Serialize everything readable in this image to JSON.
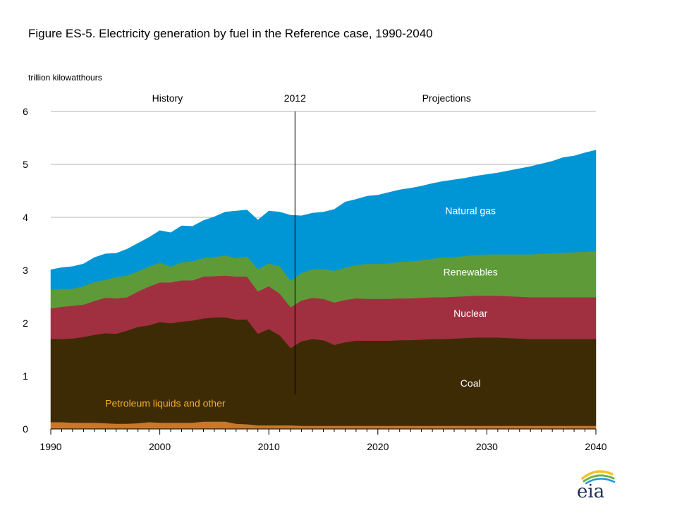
{
  "title": "Figure ES-5. Electricity generation by fuel in the Reference case, 1990-2040",
  "unit_label": "trillion kilowatthours",
  "logo_text": "eia",
  "chart_data": {
    "type": "area",
    "stacked": true,
    "x_start": 1990,
    "x_end": 2040,
    "xlim": [
      1990,
      2040
    ],
    "ylim": [
      0,
      6
    ],
    "x_ticks": [
      1990,
      2000,
      2010,
      2020,
      2030,
      2040
    ],
    "y_ticks": [
      0,
      1,
      2,
      3,
      4,
      5,
      6
    ],
    "grid": true,
    "divider_year": 2012.4,
    "header_labels": {
      "history": "History",
      "divider": "2012",
      "projections": "Projections"
    },
    "series": [
      {
        "name": "Petroleum liquids and other",
        "color": "#c8772b",
        "label_color": "#f2b02a",
        "values": [
          0.13,
          0.13,
          0.12,
          0.12,
          0.12,
          0.11,
          0.1,
          0.1,
          0.11,
          0.13,
          0.12,
          0.12,
          0.12,
          0.12,
          0.14,
          0.14,
          0.14,
          0.1,
          0.09,
          0.07,
          0.07,
          0.07,
          0.07,
          0.06,
          0.06,
          0.06,
          0.06,
          0.06,
          0.06,
          0.06,
          0.06,
          0.06,
          0.06,
          0.06,
          0.06,
          0.06,
          0.06,
          0.06,
          0.06,
          0.06,
          0.06,
          0.06,
          0.06,
          0.06,
          0.06,
          0.06,
          0.06,
          0.06,
          0.06,
          0.06,
          0.06
        ]
      },
      {
        "name": "Coal",
        "color": "#3d2b05",
        "label_color": "#ffffff",
        "values": [
          1.57,
          1.57,
          1.59,
          1.62,
          1.66,
          1.7,
          1.7,
          1.76,
          1.82,
          1.83,
          1.9,
          1.88,
          1.91,
          1.93,
          1.95,
          1.97,
          1.97,
          1.97,
          1.98,
          1.73,
          1.82,
          1.7,
          1.46,
          1.6,
          1.64,
          1.62,
          1.53,
          1.58,
          1.61,
          1.61,
          1.61,
          1.61,
          1.62,
          1.62,
          1.63,
          1.64,
          1.64,
          1.65,
          1.66,
          1.67,
          1.67,
          1.67,
          1.66,
          1.65,
          1.64,
          1.64,
          1.64,
          1.64,
          1.64,
          1.64,
          1.64
        ]
      },
      {
        "name": "Nuclear",
        "color": "#a03040",
        "label_color": "#ffffff",
        "values": [
          0.58,
          0.61,
          0.62,
          0.61,
          0.64,
          0.67,
          0.67,
          0.63,
          0.67,
          0.73,
          0.75,
          0.77,
          0.78,
          0.76,
          0.79,
          0.78,
          0.79,
          0.81,
          0.81,
          0.8,
          0.81,
          0.79,
          0.77,
          0.77,
          0.78,
          0.78,
          0.8,
          0.8,
          0.8,
          0.79,
          0.79,
          0.79,
          0.79,
          0.79,
          0.79,
          0.79,
          0.79,
          0.79,
          0.79,
          0.79,
          0.79,
          0.79,
          0.79,
          0.79,
          0.79,
          0.79,
          0.79,
          0.79,
          0.79,
          0.79,
          0.79
        ]
      },
      {
        "name": "Renewables",
        "color": "#5e9b38",
        "label_color": "#ffffff",
        "values": [
          0.35,
          0.34,
          0.32,
          0.35,
          0.36,
          0.34,
          0.4,
          0.41,
          0.38,
          0.38,
          0.37,
          0.3,
          0.34,
          0.36,
          0.35,
          0.36,
          0.38,
          0.35,
          0.38,
          0.42,
          0.43,
          0.52,
          0.5,
          0.52,
          0.54,
          0.56,
          0.6,
          0.61,
          0.63,
          0.66,
          0.66,
          0.67,
          0.69,
          0.7,
          0.71,
          0.73,
          0.75,
          0.75,
          0.76,
          0.77,
          0.78,
          0.78,
          0.79,
          0.8,
          0.81,
          0.82,
          0.83,
          0.84,
          0.85,
          0.86,
          0.87
        ]
      },
      {
        "name": "Natural gas",
        "color": "#0096d6",
        "label_color": "#ffffff",
        "values": [
          0.38,
          0.4,
          0.42,
          0.42,
          0.46,
          0.49,
          0.45,
          0.5,
          0.53,
          0.55,
          0.61,
          0.64,
          0.69,
          0.66,
          0.71,
          0.76,
          0.82,
          0.89,
          0.88,
          0.93,
          0.99,
          1.02,
          1.24,
          1.08,
          1.06,
          1.08,
          1.16,
          1.24,
          1.24,
          1.28,
          1.3,
          1.34,
          1.36,
          1.38,
          1.4,
          1.42,
          1.44,
          1.46,
          1.47,
          1.49,
          1.51,
          1.54,
          1.58,
          1.62,
          1.66,
          1.7,
          1.74,
          1.8,
          1.82,
          1.87,
          1.91
        ]
      }
    ]
  }
}
